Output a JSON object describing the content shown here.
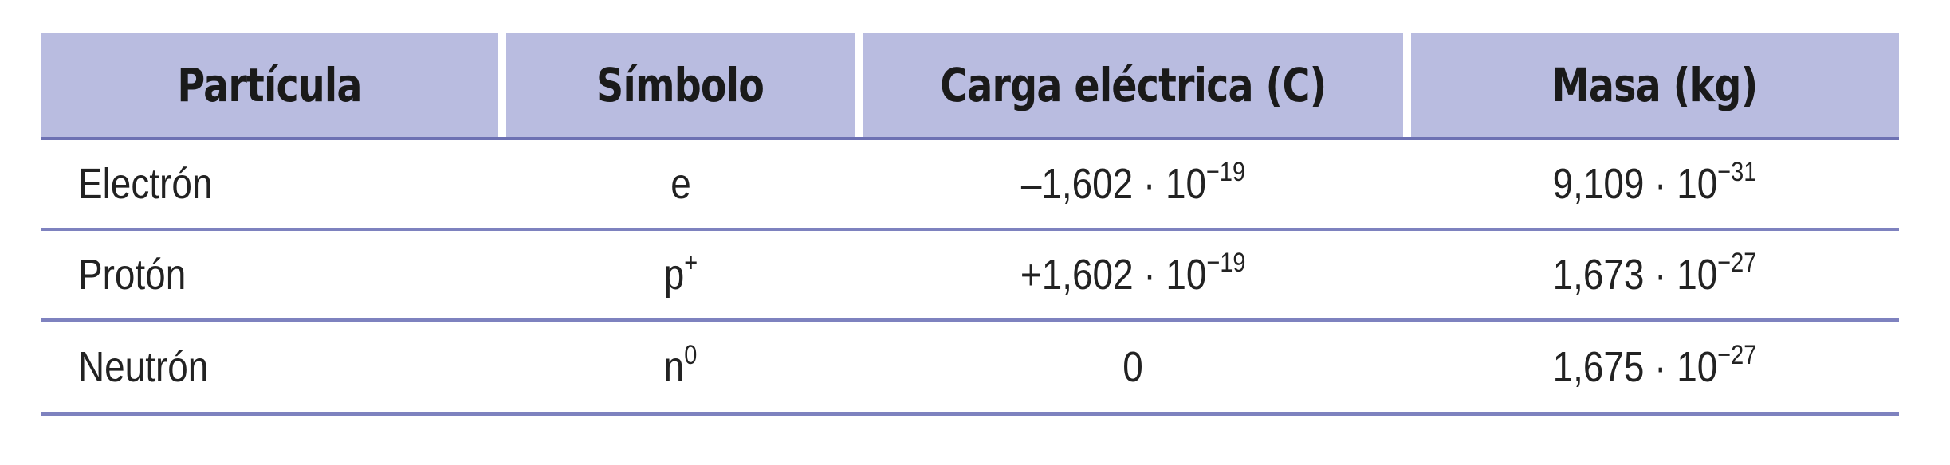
{
  "table": {
    "headers": [
      "Partícula",
      "Símbolo",
      "Carga eléctrica (C)",
      "Masa (kg)"
    ],
    "rows": [
      {
        "particle": "Electrón",
        "symbol_base": "e",
        "symbol_sup": "",
        "charge_base": "–1,602 · 10",
        "charge_exp": "−19",
        "mass_base": "9,109 · 10",
        "mass_exp": "−31"
      },
      {
        "particle": "Protón",
        "symbol_base": "p",
        "symbol_sup": "+",
        "charge_base": "+1,602 · 10",
        "charge_exp": "−19",
        "mass_base": "1,673 · 10",
        "mass_exp": "−27"
      },
      {
        "particle": "Neutrón",
        "symbol_base": "n",
        "symbol_sup": "0",
        "charge_base": "0",
        "charge_exp": "",
        "mass_base": "1,675 · 10",
        "mass_exp": "−27"
      }
    ]
  },
  "colors": {
    "header_bg": "#b9bce0",
    "rule": "#7e82bf"
  }
}
